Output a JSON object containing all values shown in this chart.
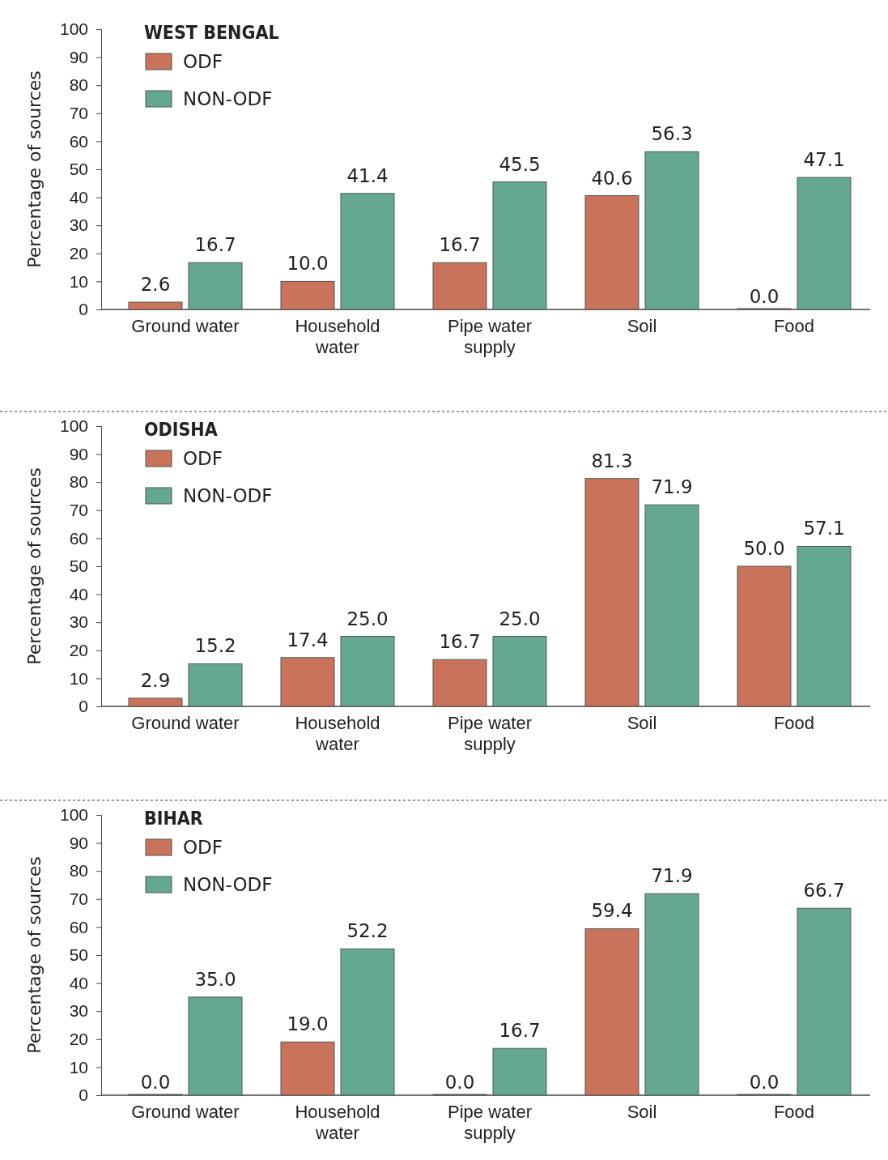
{
  "chart_data": [
    {
      "type": "bar",
      "title": "WEST BENGAL",
      "ylabel": "Percentage of sources",
      "categories": [
        "Ground water",
        "Household water",
        "Pipe water supply",
        "Soil",
        "Food"
      ],
      "series": [
        {
          "name": "ODF",
          "color": "#c8735a",
          "values": [
            2.6,
            10.0,
            16.7,
            40.6,
            0.0
          ],
          "value_labels": [
            "2.6",
            "10.0",
            "16.7",
            "40.6",
            "0.0"
          ]
        },
        {
          "name": "NON-ODF",
          "color": "#64a98f",
          "values": [
            16.7,
            41.4,
            45.5,
            56.3,
            47.1
          ],
          "value_labels": [
            "16.7",
            "41.4",
            "45.5",
            "56.3",
            "47.1"
          ]
        }
      ],
      "ylim": [
        0,
        100
      ],
      "yticks": [
        0,
        10,
        20,
        30,
        40,
        50,
        60,
        70,
        80,
        90,
        100
      ],
      "legend": "top left",
      "grid": false
    },
    {
      "type": "bar",
      "title": "ODISHA",
      "ylabel": "Percentage of sources",
      "categories": [
        "Ground water",
        "Household water",
        "Pipe water supply",
        "Soil",
        "Food"
      ],
      "series": [
        {
          "name": "ODF",
          "color": "#c8735a",
          "values": [
            2.9,
            17.4,
            16.7,
            81.3,
            50.0
          ],
          "value_labels": [
            "2.9",
            "17.4",
            "16.7",
            "81.3",
            "50.0"
          ]
        },
        {
          "name": "NON-ODF",
          "color": "#64a98f",
          "values": [
            15.2,
            25.0,
            25.0,
            71.9,
            57.1
          ],
          "value_labels": [
            "15.2",
            "25.0",
            "25.0",
            "71.9",
            "57.1"
          ]
        }
      ],
      "ylim": [
        0,
        100
      ],
      "yticks": [
        0,
        10,
        20,
        30,
        40,
        50,
        60,
        70,
        80,
        90,
        100
      ],
      "legend": "top left",
      "grid": false
    },
    {
      "type": "bar",
      "title": "BIHAR",
      "ylabel": "Percentage of sources",
      "categories": [
        "Ground water",
        "Household water",
        "Pipe water supply",
        "Soil",
        "Food"
      ],
      "series": [
        {
          "name": "ODF",
          "color": "#c8735a",
          "values": [
            0.0,
            19.0,
            0.0,
            59.4,
            0.0
          ],
          "value_labels": [
            "0.0",
            "19.0",
            "0.0",
            "59.4",
            "0.0"
          ]
        },
        {
          "name": "NON-ODF",
          "color": "#64a98f",
          "values": [
            35.0,
            52.2,
            16.7,
            71.9,
            66.7
          ],
          "value_labels": [
            "35.0",
            "52.2",
            "16.7",
            "71.9",
            "66.7"
          ]
        }
      ],
      "ylim": [
        0,
        100
      ],
      "yticks": [
        0,
        10,
        20,
        30,
        40,
        50,
        60,
        70,
        80,
        90,
        100
      ],
      "legend": "top left",
      "grid": false
    }
  ]
}
